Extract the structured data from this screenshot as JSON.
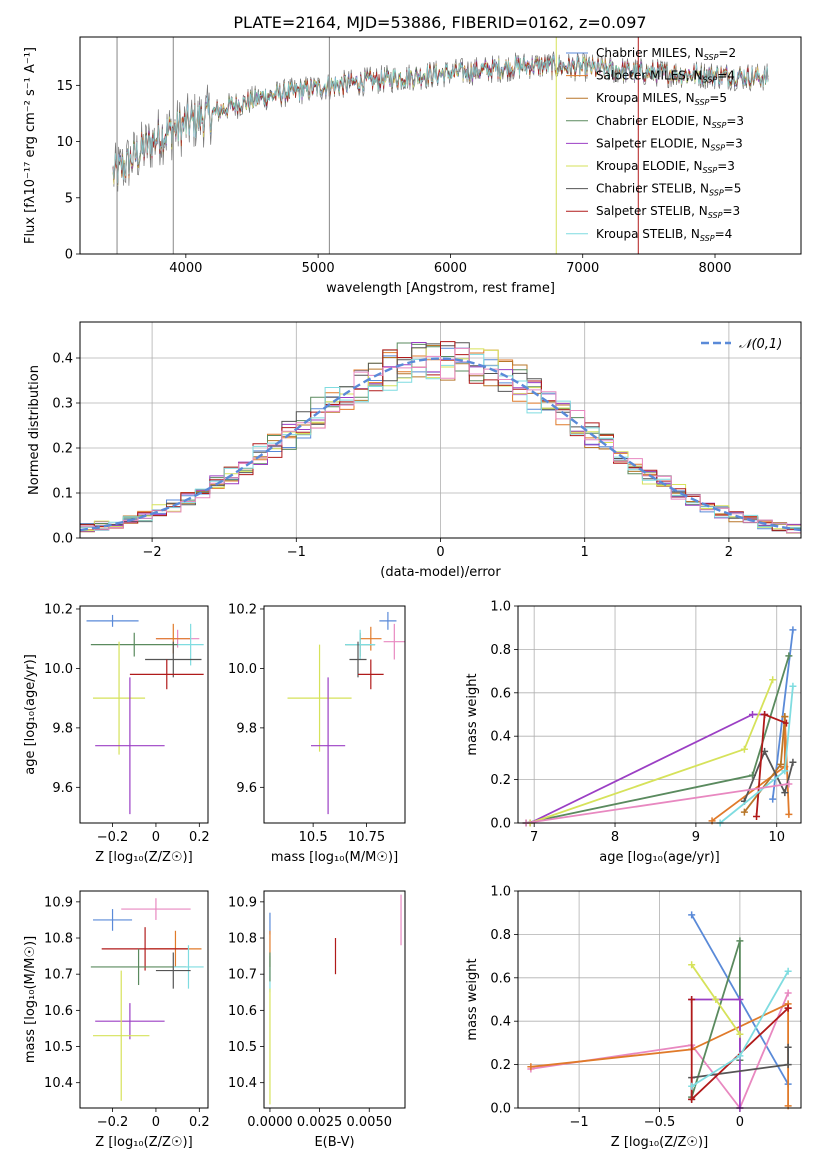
{
  "figure_title": "PLATE=2164, MJD=53886, FIBERID=0162, z=0.097",
  "colors": {
    "c0": "#5a8ad8",
    "c1": "#e07a2a",
    "c2": "#b8772a",
    "c3": "#5a8a5e",
    "c4": "#9b3fc4",
    "c5": "#d6e25a",
    "c6": "#555555",
    "c7": "#b01a1a",
    "c8": "#7fdce0",
    "c9": "#e888c0",
    "dash": "#5a8ad8"
  },
  "chart_data": [
    {
      "id": "spectrum",
      "type": "line",
      "title": "PLATE=2164, MJD=53886, FIBERID=0162, z=0.097",
      "xlabel": "wavelength [Angstrom, rest frame]",
      "ylabel": "Flux [fλ10⁻¹⁷ erg cm⁻² s⁻¹ A⁻¹]",
      "xlim": [
        3200,
        8650
      ],
      "ylim": [
        0,
        19.3
      ],
      "xticks": [
        4000,
        5000,
        6000,
        7000,
        8000
      ],
      "yticks": [
        0,
        5,
        10,
        15
      ],
      "grid": false,
      "legend": "top-right",
      "continuum": [
        [
          3450,
          7.0
        ],
        [
          3600,
          8.5
        ],
        [
          3800,
          10.5
        ],
        [
          4000,
          11.5
        ],
        [
          4300,
          13.0
        ],
        [
          4600,
          14.0
        ],
        [
          5000,
          14.8
        ],
        [
          5400,
          15.4
        ],
        [
          5800,
          15.9
        ],
        [
          6200,
          16.3
        ],
        [
          6600,
          16.8
        ],
        [
          7000,
          16.6
        ],
        [
          7400,
          16.2
        ],
        [
          7800,
          16.0
        ],
        [
          8200,
          15.8
        ],
        [
          8400,
          15.7
        ]
      ],
      "series": [
        {
          "name": "Chabrier MILES, N_SSP=2",
          "label_main": "Chabrier MILES, N",
          "label_sub": "SSP",
          "label_tail": "=2"
        },
        {
          "name": "Salpeter MILES, N_SSP=4",
          "label_main": "Salpeter MILES, N",
          "label_sub": "SSP",
          "label_tail": "=4"
        },
        {
          "name": "Kroupa MILES, N_SSP=5",
          "label_main": "Kroupa MILES, N",
          "label_sub": "SSP",
          "label_tail": "=5"
        },
        {
          "name": "Chabrier ELODIE, N_SSP=3",
          "label_main": "Chabrier ELODIE, N",
          "label_sub": "SSP",
          "label_tail": "=3"
        },
        {
          "name": "Salpeter ELODIE, N_SSP=3",
          "label_main": "Salpeter ELODIE, N",
          "label_sub": "SSP",
          "label_tail": "=3"
        },
        {
          "name": "Kroupa ELODIE, N_SSP=3",
          "label_main": "Kroupa ELODIE, N",
          "label_sub": "SSP",
          "label_tail": "=3"
        },
        {
          "name": "Chabrier STELIB, N_SSP=5",
          "label_main": "Chabrier STELIB, N",
          "label_sub": "SSP",
          "label_tail": "=5"
        },
        {
          "name": "Salpeter STELIB, N_SSP=3",
          "label_main": "Salpeter STELIB, N",
          "label_sub": "SSP",
          "label_tail": "=3"
        },
        {
          "name": "Kroupa STELIB, N_SSP=4",
          "label_main": "Kroupa STELIB, N",
          "label_sub": "SSP",
          "label_tail": "=4"
        }
      ],
      "spikes": [
        {
          "x": 5085,
          "y": 0
        },
        {
          "x": 6800,
          "y": 0
        },
        {
          "x": 7420,
          "y": 0
        },
        {
          "x": 3905,
          "y": 0
        },
        {
          "x": 3480,
          "y": 0
        }
      ]
    },
    {
      "id": "residuals",
      "type": "area",
      "xlabel": "(data-model)/error",
      "ylabel": "Normed distribution",
      "xlim": [
        -2.5,
        2.5
      ],
      "ylim": [
        0,
        0.48
      ],
      "xticks": [
        -2,
        -1,
        0,
        1,
        2
      ],
      "yticks": [
        0.0,
        0.1,
        0.2,
        0.3,
        0.4
      ],
      "grid": true,
      "legend": "top-right",
      "legend_label": "𝒩(0,1)",
      "bin_width": 0.1,
      "histogram_count": 10
    },
    {
      "id": "age_vs_Z",
      "type": "scatter",
      "xlabel": "Z [log₁₀(Z/Z☉)]",
      "ylabel": "age  [log₁₀(age/yr)]",
      "xlim": [
        -0.35,
        0.24
      ],
      "ylim": [
        9.48,
        10.21
      ],
      "xticks": [
        -0.2,
        0.0,
        0.2
      ],
      "yticks": [
        9.6,
        9.8,
        10.0,
        10.2
      ],
      "grid": false,
      "points": [
        {
          "c": "c0",
          "x": -0.2,
          "y": 10.16,
          "xerr": 0.12,
          "yerr": 0.02
        },
        {
          "c": "c9",
          "x": 0.1,
          "y": 10.1,
          "xerr": 0.1,
          "yerr": 0.03
        },
        {
          "c": "c1",
          "x": 0.08,
          "y": 10.1,
          "xerr": 0.08,
          "yerr": 0.05
        },
        {
          "c": "c3",
          "x": -0.1,
          "y": 10.08,
          "xerr": 0.2,
          "yerr": 0.04
        },
        {
          "c": "c8",
          "x": 0.16,
          "y": 10.08,
          "xerr": 0.06,
          "yerr": 0.07
        },
        {
          "c": "c6",
          "x": 0.08,
          "y": 10.03,
          "xerr": 0.13,
          "yerr": 0.06
        },
        {
          "c": "c7",
          "x": 0.05,
          "y": 9.98,
          "xerr": 0.17,
          "yerr": 0.05
        },
        {
          "c": "c5",
          "x": -0.17,
          "y": 9.9,
          "xerr": 0.12,
          "yerr": 0.19
        },
        {
          "c": "c4",
          "x": -0.12,
          "y": 9.74,
          "xerr": 0.16,
          "yerr": 0.23
        }
      ]
    },
    {
      "id": "age_vs_mass",
      "type": "scatter",
      "xlabel": "mass [log₁₀(M/M☉)]",
      "ylabel": "",
      "xlim": [
        10.27,
        10.93
      ],
      "ylim": [
        9.48,
        10.21
      ],
      "xticks": [
        10.5,
        10.75
      ],
      "yticks": [
        9.6,
        9.8,
        10.0,
        10.2
      ],
      "grid": false,
      "points": [
        {
          "c": "c0",
          "x": 10.85,
          "y": 10.16,
          "xerr": 0.04,
          "yerr": 0.03
        },
        {
          "c": "c9",
          "x": 10.88,
          "y": 10.09,
          "xerr": 0.05,
          "yerr": 0.06
        },
        {
          "c": "c1",
          "x": 10.77,
          "y": 10.1,
          "xerr": 0.05,
          "yerr": 0.04
        },
        {
          "c": "c3",
          "x": 10.72,
          "y": 10.08,
          "xerr": 0.07,
          "yerr": 0.04
        },
        {
          "c": "c8",
          "x": 10.72,
          "y": 10.08,
          "xerr": 0.07,
          "yerr": 0.05
        },
        {
          "c": "c6",
          "x": 10.71,
          "y": 10.03,
          "xerr": 0.04,
          "yerr": 0.06
        },
        {
          "c": "c7",
          "x": 10.77,
          "y": 9.98,
          "xerr": 0.06,
          "yerr": 0.05
        },
        {
          "c": "c5",
          "x": 10.53,
          "y": 9.9,
          "xerr": 0.15,
          "yerr": 0.18
        },
        {
          "c": "c4",
          "x": 10.57,
          "y": 9.74,
          "xerr": 0.08,
          "yerr": 0.23
        }
      ]
    },
    {
      "id": "mass_weight_vs_age",
      "type": "line",
      "xlabel": "age  [log₁₀(age/yr)]",
      "ylabel": "mass weight",
      "xlim": [
        6.8,
        10.3
      ],
      "ylim": [
        0,
        1.0
      ],
      "xticks": [
        7,
        8,
        9,
        10
      ],
      "yticks": [
        0.0,
        0.2,
        0.4,
        0.6,
        0.8,
        1.0
      ],
      "grid": true,
      "series": [
        {
          "c": "c0",
          "x": [
            9.95,
            10.2
          ],
          "y": [
            0.11,
            0.89
          ]
        },
        {
          "c": "c1",
          "x": [
            9.2,
            10.1,
            10.1,
            10.15
          ],
          "y": [
            0.01,
            0.26,
            0.49,
            0.04
          ]
        },
        {
          "c": "c2",
          "x": [
            9.6,
            10.05,
            10.1
          ],
          "y": [
            0.05,
            0.27,
            0.49
          ]
        },
        {
          "c": "c3",
          "x": [
            6.9,
            9.7,
            10.15
          ],
          "y": [
            0.0,
            0.22,
            0.77
          ]
        },
        {
          "c": "c4",
          "x": [
            6.95,
            9.7,
            9.85
          ],
          "y": [
            0.0,
            0.5,
            0.5
          ]
        },
        {
          "c": "c5",
          "x": [
            6.95,
            9.6,
            9.95
          ],
          "y": [
            0.0,
            0.34,
            0.66
          ]
        },
        {
          "c": "c6",
          "x": [
            9.6,
            9.85,
            10.1,
            10.2
          ],
          "y": [
            0.1,
            0.33,
            0.14,
            0.28
          ]
        },
        {
          "c": "c7",
          "x": [
            9.75,
            9.85,
            10.12
          ],
          "y": [
            0.03,
            0.5,
            0.46
          ]
        },
        {
          "c": "c8",
          "x": [
            9.3,
            10.1,
            10.2
          ],
          "y": [
            0.0,
            0.24,
            0.63
          ]
        },
        {
          "c": "c9",
          "x": [
            6.9,
            10.15
          ],
          "y": [
            0.0,
            0.18
          ]
        }
      ]
    },
    {
      "id": "mass_vs_Z",
      "type": "scatter",
      "xlabel": "Z [log₁₀(Z/Z☉)]",
      "ylabel": "mass [log₁₀(M/M☉)]",
      "xlim": [
        -0.35,
        0.24
      ],
      "ylim": [
        10.33,
        10.93
      ],
      "xticks": [
        -0.2,
        0.0,
        0.2
      ],
      "yticks": [
        10.4,
        10.5,
        10.6,
        10.7,
        10.8,
        10.9
      ],
      "grid": false,
      "points": [
        {
          "c": "c0",
          "x": -0.2,
          "y": 10.85,
          "xerr": 0.09,
          "yerr": 0.03
        },
        {
          "c": "c9",
          "x": 0.0,
          "y": 10.88,
          "xerr": 0.16,
          "yerr": 0.03
        },
        {
          "c": "c1",
          "x": 0.09,
          "y": 10.77,
          "xerr": 0.12,
          "yerr": 0.05
        },
        {
          "c": "c7",
          "x": -0.05,
          "y": 10.77,
          "xerr": 0.2,
          "yerr": 0.06
        },
        {
          "c": "c3",
          "x": -0.08,
          "y": 10.72,
          "xerr": 0.22,
          "yerr": 0.05
        },
        {
          "c": "c8",
          "x": 0.15,
          "y": 10.72,
          "xerr": 0.07,
          "yerr": 0.06
        },
        {
          "c": "c6",
          "x": 0.08,
          "y": 10.71,
          "xerr": 0.08,
          "yerr": 0.05
        },
        {
          "c": "c4",
          "x": -0.12,
          "y": 10.57,
          "xerr": 0.16,
          "yerr": 0.05
        },
        {
          "c": "c5",
          "x": -0.16,
          "y": 10.53,
          "xerr": 0.13,
          "yerr": 0.18
        }
      ]
    },
    {
      "id": "mass_vs_ebv",
      "type": "scatter",
      "xlabel": "E(B-V)",
      "ylabel": "",
      "xlim": [
        -0.0003,
        0.0068
      ],
      "ylim": [
        10.33,
        10.93
      ],
      "xticks": [
        0.0,
        0.0025,
        0.005
      ],
      "xticklabels": [
        "0.0000",
        "0.0025",
        "0.0050"
      ],
      "yticks": [
        10.4,
        10.5,
        10.6,
        10.7,
        10.8,
        10.9
      ],
      "grid": false,
      "points": [
        {
          "c": "c0",
          "x": 0.0,
          "y": 10.84,
          "xerr": 0,
          "yerr": 0.03
        },
        {
          "c": "c1",
          "x": 0.0,
          "y": 10.77,
          "xerr": 0,
          "yerr": 0.05
        },
        {
          "c": "c8",
          "x": 0.0,
          "y": 10.7,
          "xerr": 0,
          "yerr": 0.05
        },
        {
          "c": "c5",
          "x": 0.0,
          "y": 10.5,
          "xerr": 0,
          "yerr": 0.16
        },
        {
          "c": "c3",
          "x": 0.0,
          "y": 10.72,
          "xerr": 0,
          "yerr": 0.04
        },
        {
          "c": "c7",
          "x": 0.0033,
          "y": 10.75,
          "xerr": 0,
          "yerr": 0.05
        },
        {
          "c": "c9",
          "x": 0.0066,
          "y": 10.85,
          "xerr": 0,
          "yerr": 0.07
        }
      ]
    },
    {
      "id": "mass_weight_vs_Z",
      "type": "line",
      "xlabel": "Z [log₁₀(Z/Z☉)]",
      "ylabel": "mass weight",
      "xlim": [
        -1.38,
        0.38
      ],
      "ylim": [
        0,
        1.0
      ],
      "xticks": [
        -1.0,
        -0.5,
        0.0
      ],
      "yticks": [
        0.0,
        0.2,
        0.4,
        0.6,
        0.8,
        1.0
      ],
      "grid": true,
      "series": [
        {
          "c": "c0",
          "x": [
            -0.3,
            0.3
          ],
          "y": [
            0.89,
            0.11
          ]
        },
        {
          "c": "c9",
          "x": [
            -1.3,
            -0.3,
            0.0,
            0.3
          ],
          "y": [
            0.18,
            0.29,
            0.0,
            0.53
          ]
        },
        {
          "c": "c1",
          "x": [
            -1.3,
            -0.3,
            0.3,
            0.3
          ],
          "y": [
            0.19,
            0.27,
            0.48,
            0.01
          ]
        },
        {
          "c": "c3",
          "x": [
            -0.3,
            0.0,
            0.0
          ],
          "y": [
            0.05,
            0.77,
            0.22
          ]
        },
        {
          "c": "c4",
          "x": [
            -0.3,
            0.0,
            0.0
          ],
          "y": [
            0.5,
            0.5,
            0.0
          ]
        },
        {
          "c": "c5",
          "x": [
            -0.3,
            -0.15,
            0.0
          ],
          "y": [
            0.66,
            0.5,
            0.34
          ]
        },
        {
          "c": "c6",
          "x": [
            -0.3,
            -0.3,
            0.3,
            0.3
          ],
          "y": [
            0.04,
            0.14,
            0.2,
            0.28
          ]
        },
        {
          "c": "c7",
          "x": [
            -0.3,
            -0.3,
            0.3,
            0.3
          ],
          "y": [
            0.5,
            0.04,
            0.46,
            0.46
          ]
        },
        {
          "c": "c8",
          "x": [
            -0.3,
            0.0,
            0.3
          ],
          "y": [
            0.1,
            0.24,
            0.63
          ]
        }
      ]
    }
  ]
}
